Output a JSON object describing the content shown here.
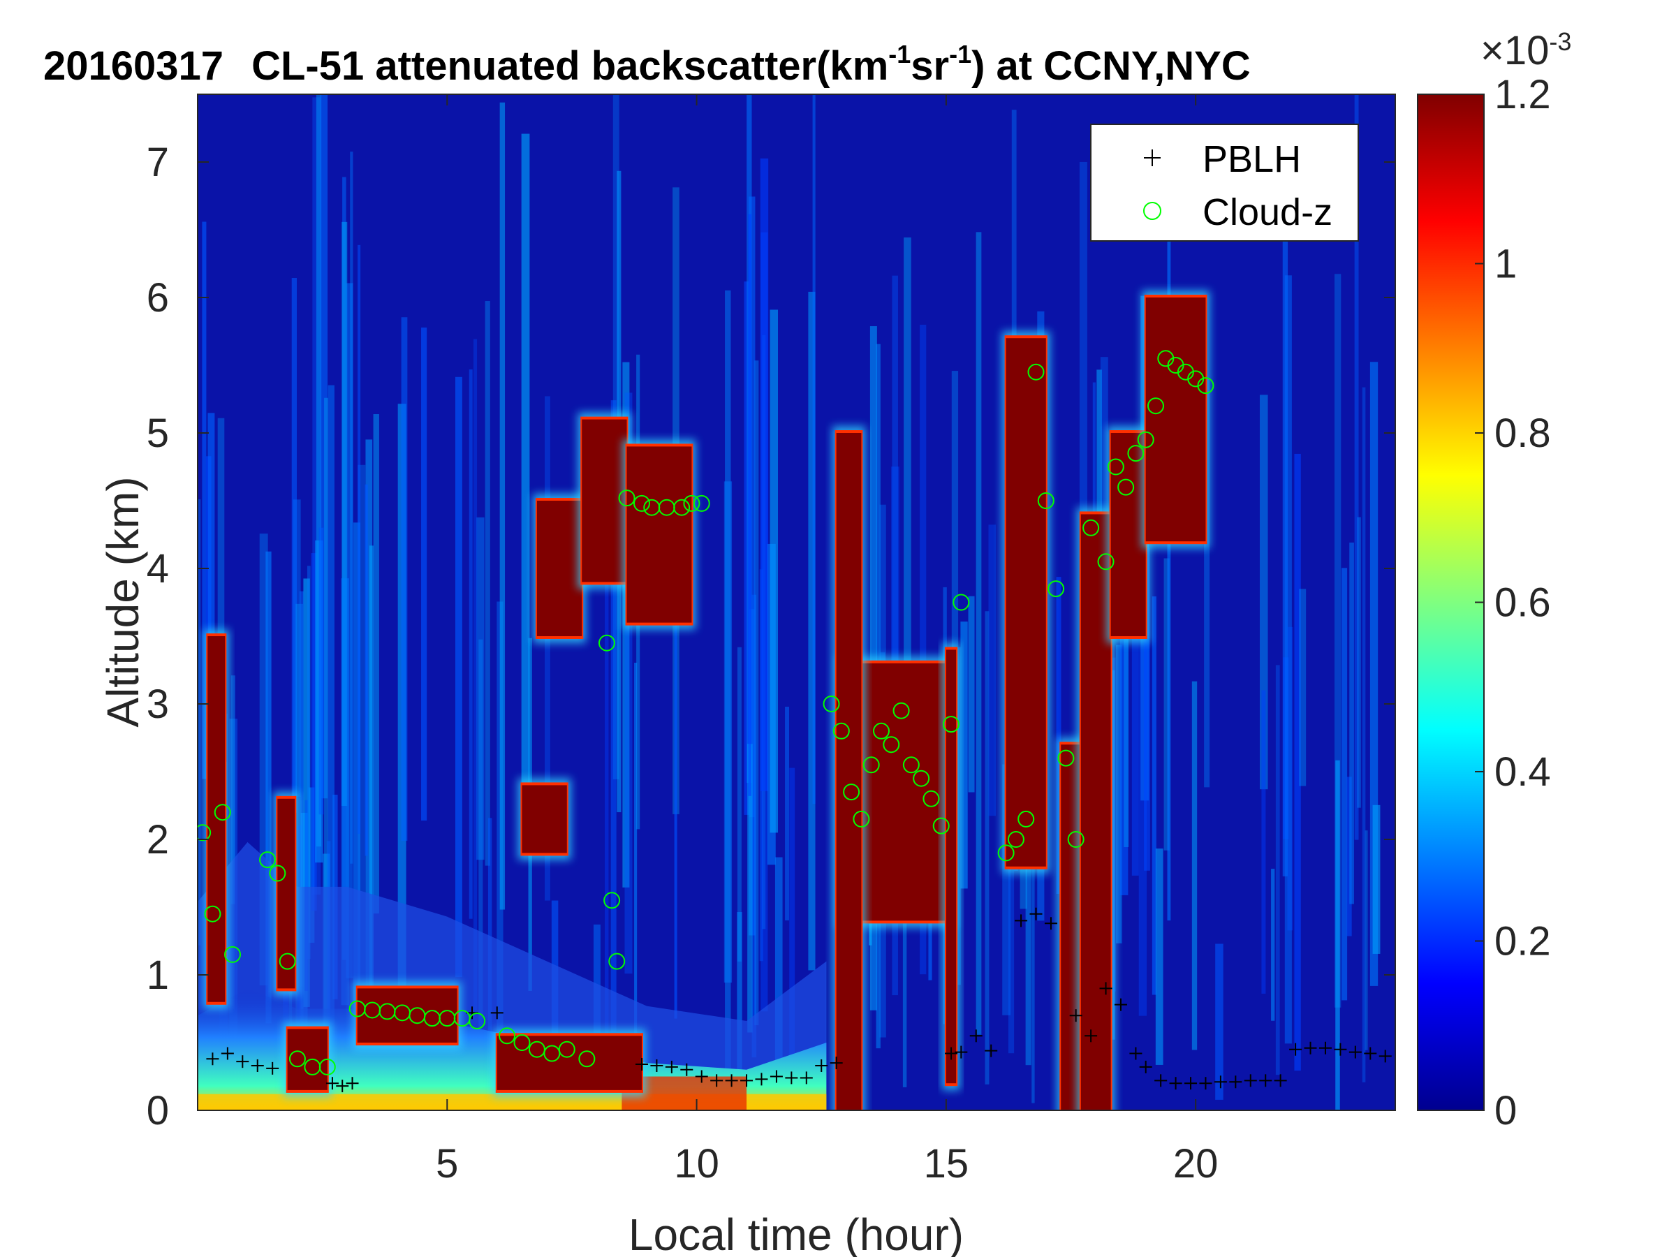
{
  "title": {
    "date": "20160317",
    "part1": "CL-51 attenuated backscatter(km",
    "sup1": "-1",
    "part2": "sr",
    "sup2": "-1",
    "part3": ") at CCNY,NYC"
  },
  "colorbar": {
    "multiplier_base": "×10",
    "multiplier_exp": "-3",
    "ticks": [
      "0",
      "0.2",
      "0.4",
      "0.6",
      "0.8",
      "1",
      "1.2"
    ],
    "range": [
      0,
      1.2
    ],
    "colormap": "jet"
  },
  "chart_data": {
    "type": "heatmap",
    "xlabel": "Local time (hour)",
    "ylabel": "Altitude (km)",
    "xlim": [
      0,
      24
    ],
    "ylim": [
      0,
      7.5
    ],
    "xticks": [
      "5",
      "10",
      "15",
      "20"
    ],
    "yticks": [
      "0",
      "1",
      "2",
      "3",
      "4",
      "5",
      "6",
      "7"
    ],
    "background_level": 0.08,
    "legend": {
      "placement": "top-right",
      "entries": [
        "PBLH",
        "Cloud-z"
      ]
    },
    "aerosol_layer": [
      {
        "t": 0.0,
        "top": 0.7
      },
      {
        "t": 1.0,
        "top": 0.9
      },
      {
        "t": 2.0,
        "top": 0.75
      },
      {
        "t": 3.0,
        "top": 0.75
      },
      {
        "t": 5.0,
        "top": 0.65
      },
      {
        "t": 7.0,
        "top": 0.5
      },
      {
        "t": 9.0,
        "top": 0.35
      },
      {
        "t": 11.0,
        "top": 0.3
      },
      {
        "t": 12.6,
        "top": 0.5
      }
    ],
    "cloud_patches": [
      {
        "t0": 0.2,
        "t1": 0.55,
        "z0": 0.8,
        "z1": 3.5
      },
      {
        "t0": 1.6,
        "t1": 1.95,
        "z0": 0.9,
        "z1": 2.3
      },
      {
        "t0": 1.8,
        "t1": 2.6,
        "z0": 0.15,
        "z1": 0.6
      },
      {
        "t0": 3.2,
        "t1": 5.2,
        "z0": 0.5,
        "z1": 0.9
      },
      {
        "t0": 6.0,
        "t1": 8.9,
        "z0": 0.15,
        "z1": 0.55
      },
      {
        "t0": 6.8,
        "t1": 7.7,
        "z0": 3.5,
        "z1": 4.5
      },
      {
        "t0": 7.7,
        "t1": 8.6,
        "z0": 3.9,
        "z1": 5.1
      },
      {
        "t0": 8.6,
        "t1": 9.9,
        "z0": 3.6,
        "z1": 4.9
      },
      {
        "t0": 6.5,
        "t1": 7.4,
        "z0": 1.9,
        "z1": 2.4
      },
      {
        "t0": 12.9,
        "t1": 15.1,
        "z0": 1.4,
        "z1": 3.3
      },
      {
        "t0": 12.8,
        "t1": 13.3,
        "z0": 0.0,
        "z1": 5.0
      },
      {
        "t0": 15.0,
        "t1": 15.2,
        "z0": 0.2,
        "z1": 3.4
      },
      {
        "t0": 16.2,
        "t1": 17.0,
        "z0": 1.8,
        "z1": 5.7
      },
      {
        "t0": 17.3,
        "t1": 17.8,
        "z0": 0.0,
        "z1": 2.7
      },
      {
        "t0": 17.7,
        "t1": 18.3,
        "z0": 0.0,
        "z1": 4.4
      },
      {
        "t0": 18.3,
        "t1": 19.0,
        "z0": 3.5,
        "z1": 5.0
      },
      {
        "t0": 19.0,
        "t1": 20.2,
        "z0": 4.2,
        "z1": 6.0
      }
    ],
    "series": [
      {
        "name": "PBLH",
        "marker": "+",
        "color": "#000000",
        "x": [
          0.3,
          0.6,
          0.9,
          1.2,
          1.5,
          2.7,
          2.9,
          3.1,
          5.5,
          6.0,
          8.9,
          9.2,
          9.5,
          9.8,
          10.1,
          10.4,
          10.7,
          11.0,
          11.3,
          11.6,
          11.9,
          12.2,
          12.5,
          12.8,
          15.1,
          15.3,
          15.6,
          15.9,
          16.5,
          16.8,
          17.1,
          17.6,
          17.9,
          18.2,
          18.5,
          18.8,
          19.0,
          19.3,
          19.6,
          19.9,
          20.2,
          20.5,
          20.8,
          21.1,
          21.4,
          21.7,
          22.0,
          22.3,
          22.6,
          22.9,
          23.2,
          23.5,
          23.8
        ],
        "y": [
          0.38,
          0.42,
          0.36,
          0.33,
          0.31,
          0.2,
          0.18,
          0.2,
          0.72,
          0.72,
          0.34,
          0.33,
          0.32,
          0.3,
          0.25,
          0.22,
          0.22,
          0.22,
          0.23,
          0.25,
          0.24,
          0.24,
          0.33,
          0.35,
          0.42,
          0.43,
          0.55,
          0.44,
          1.4,
          1.45,
          1.38,
          0.7,
          0.55,
          0.9,
          0.78,
          0.42,
          0.32,
          0.22,
          0.2,
          0.2,
          0.2,
          0.21,
          0.21,
          0.22,
          0.22,
          0.22,
          0.45,
          0.46,
          0.46,
          0.45,
          0.43,
          0.42,
          0.4
        ]
      },
      {
        "name": "Cloud-z",
        "marker": "o",
        "color": "#00ff00",
        "x": [
          0.1,
          0.3,
          0.5,
          0.7,
          1.4,
          1.6,
          1.8,
          2.0,
          2.3,
          2.6,
          3.2,
          3.5,
          3.8,
          4.1,
          4.4,
          4.7,
          5.0,
          5.3,
          5.6,
          6.2,
          6.5,
          6.8,
          7.1,
          7.4,
          7.8,
          8.2,
          8.3,
          8.4,
          8.6,
          8.9,
          9.1,
          9.4,
          9.7,
          9.9,
          10.1,
          12.7,
          12.9,
          13.1,
          13.3,
          13.5,
          13.7,
          13.9,
          14.1,
          14.3,
          14.5,
          14.7,
          14.9,
          15.1,
          15.3,
          16.2,
          16.4,
          16.6,
          16.8,
          17.0,
          17.2,
          17.4,
          17.6,
          17.9,
          18.2,
          18.4,
          18.6,
          18.8,
          19.0,
          19.2,
          19.4,
          19.6,
          19.8,
          20.0,
          20.2
        ],
        "y": [
          2.05,
          1.45,
          2.2,
          1.15,
          1.85,
          1.75,
          1.1,
          0.38,
          0.32,
          0.32,
          0.75,
          0.74,
          0.73,
          0.72,
          0.7,
          0.68,
          0.68,
          0.68,
          0.66,
          0.55,
          0.5,
          0.45,
          0.42,
          0.45,
          0.38,
          3.45,
          1.55,
          1.1,
          4.52,
          4.48,
          4.45,
          4.45,
          4.45,
          4.48,
          4.48,
          3.0,
          2.8,
          2.35,
          2.15,
          2.55,
          2.8,
          2.7,
          2.95,
          2.55,
          2.45,
          2.3,
          2.1,
          2.85,
          3.75,
          1.9,
          2.0,
          2.15,
          5.45,
          4.5,
          3.85,
          2.6,
          2.0,
          4.3,
          4.05,
          4.75,
          4.6,
          4.85,
          4.95,
          5.2,
          5.55,
          5.5,
          5.45,
          5.4,
          5.35
        ]
      }
    ]
  }
}
